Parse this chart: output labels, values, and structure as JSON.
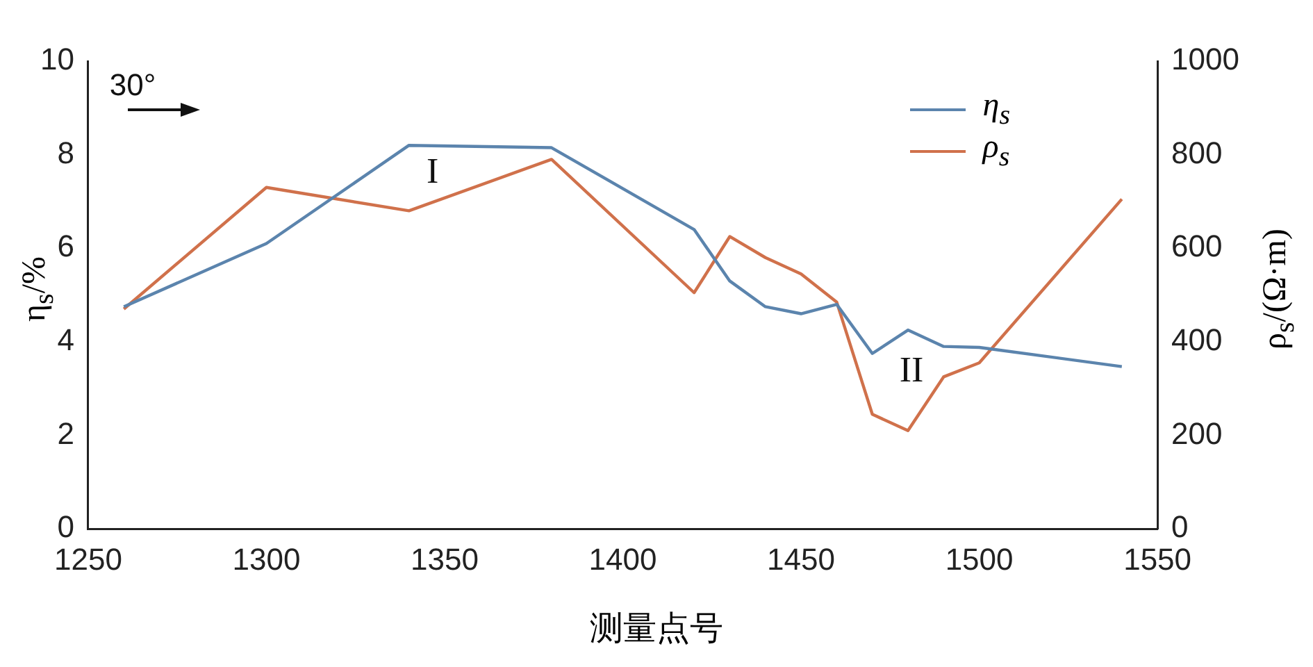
{
  "chart_data": {
    "type": "line",
    "x": [
      1260,
      1300,
      1340,
      1380,
      1420,
      1430,
      1440,
      1450,
      1460,
      1470,
      1480,
      1490,
      1500,
      1540
    ],
    "series": [
      {
        "name": "η$_{s}$",
        "color": "#5b84ad",
        "values": [
          4.75,
          6.1,
          8.2,
          8.15,
          6.4,
          5.3,
          4.75,
          4.6,
          4.8,
          3.75,
          4.25,
          3.9,
          3.88,
          3.47
        ]
      },
      {
        "name": "ρ$_{s}$",
        "color": "#d0714b",
        "axis": "y2",
        "values": [
          470,
          730,
          680,
          790,
          505,
          625,
          580,
          545,
          485,
          245,
          210,
          325,
          355,
          705
        ]
      }
    ],
    "xlabel": "测量点号",
    "ylabel": "η$_{s}$/%",
    "y2label": "ρ$_{s}$/(Ω·m)",
    "xlim": [
      1250,
      1550
    ],
    "xticks": [
      1250,
      1300,
      1350,
      1400,
      1450,
      1500,
      1550
    ],
    "ylim": [
      0,
      10
    ],
    "yticks": [
      0,
      2,
      4,
      6,
      8,
      10
    ],
    "y2lim": [
      0,
      1000
    ],
    "y2ticks": [
      0,
      200,
      400,
      600,
      800,
      1000
    ],
    "annotations": [
      "30°",
      "I",
      "II"
    ],
    "grid": false,
    "legend": "top right",
    "marker": "none",
    "line_style": "solid"
  }
}
